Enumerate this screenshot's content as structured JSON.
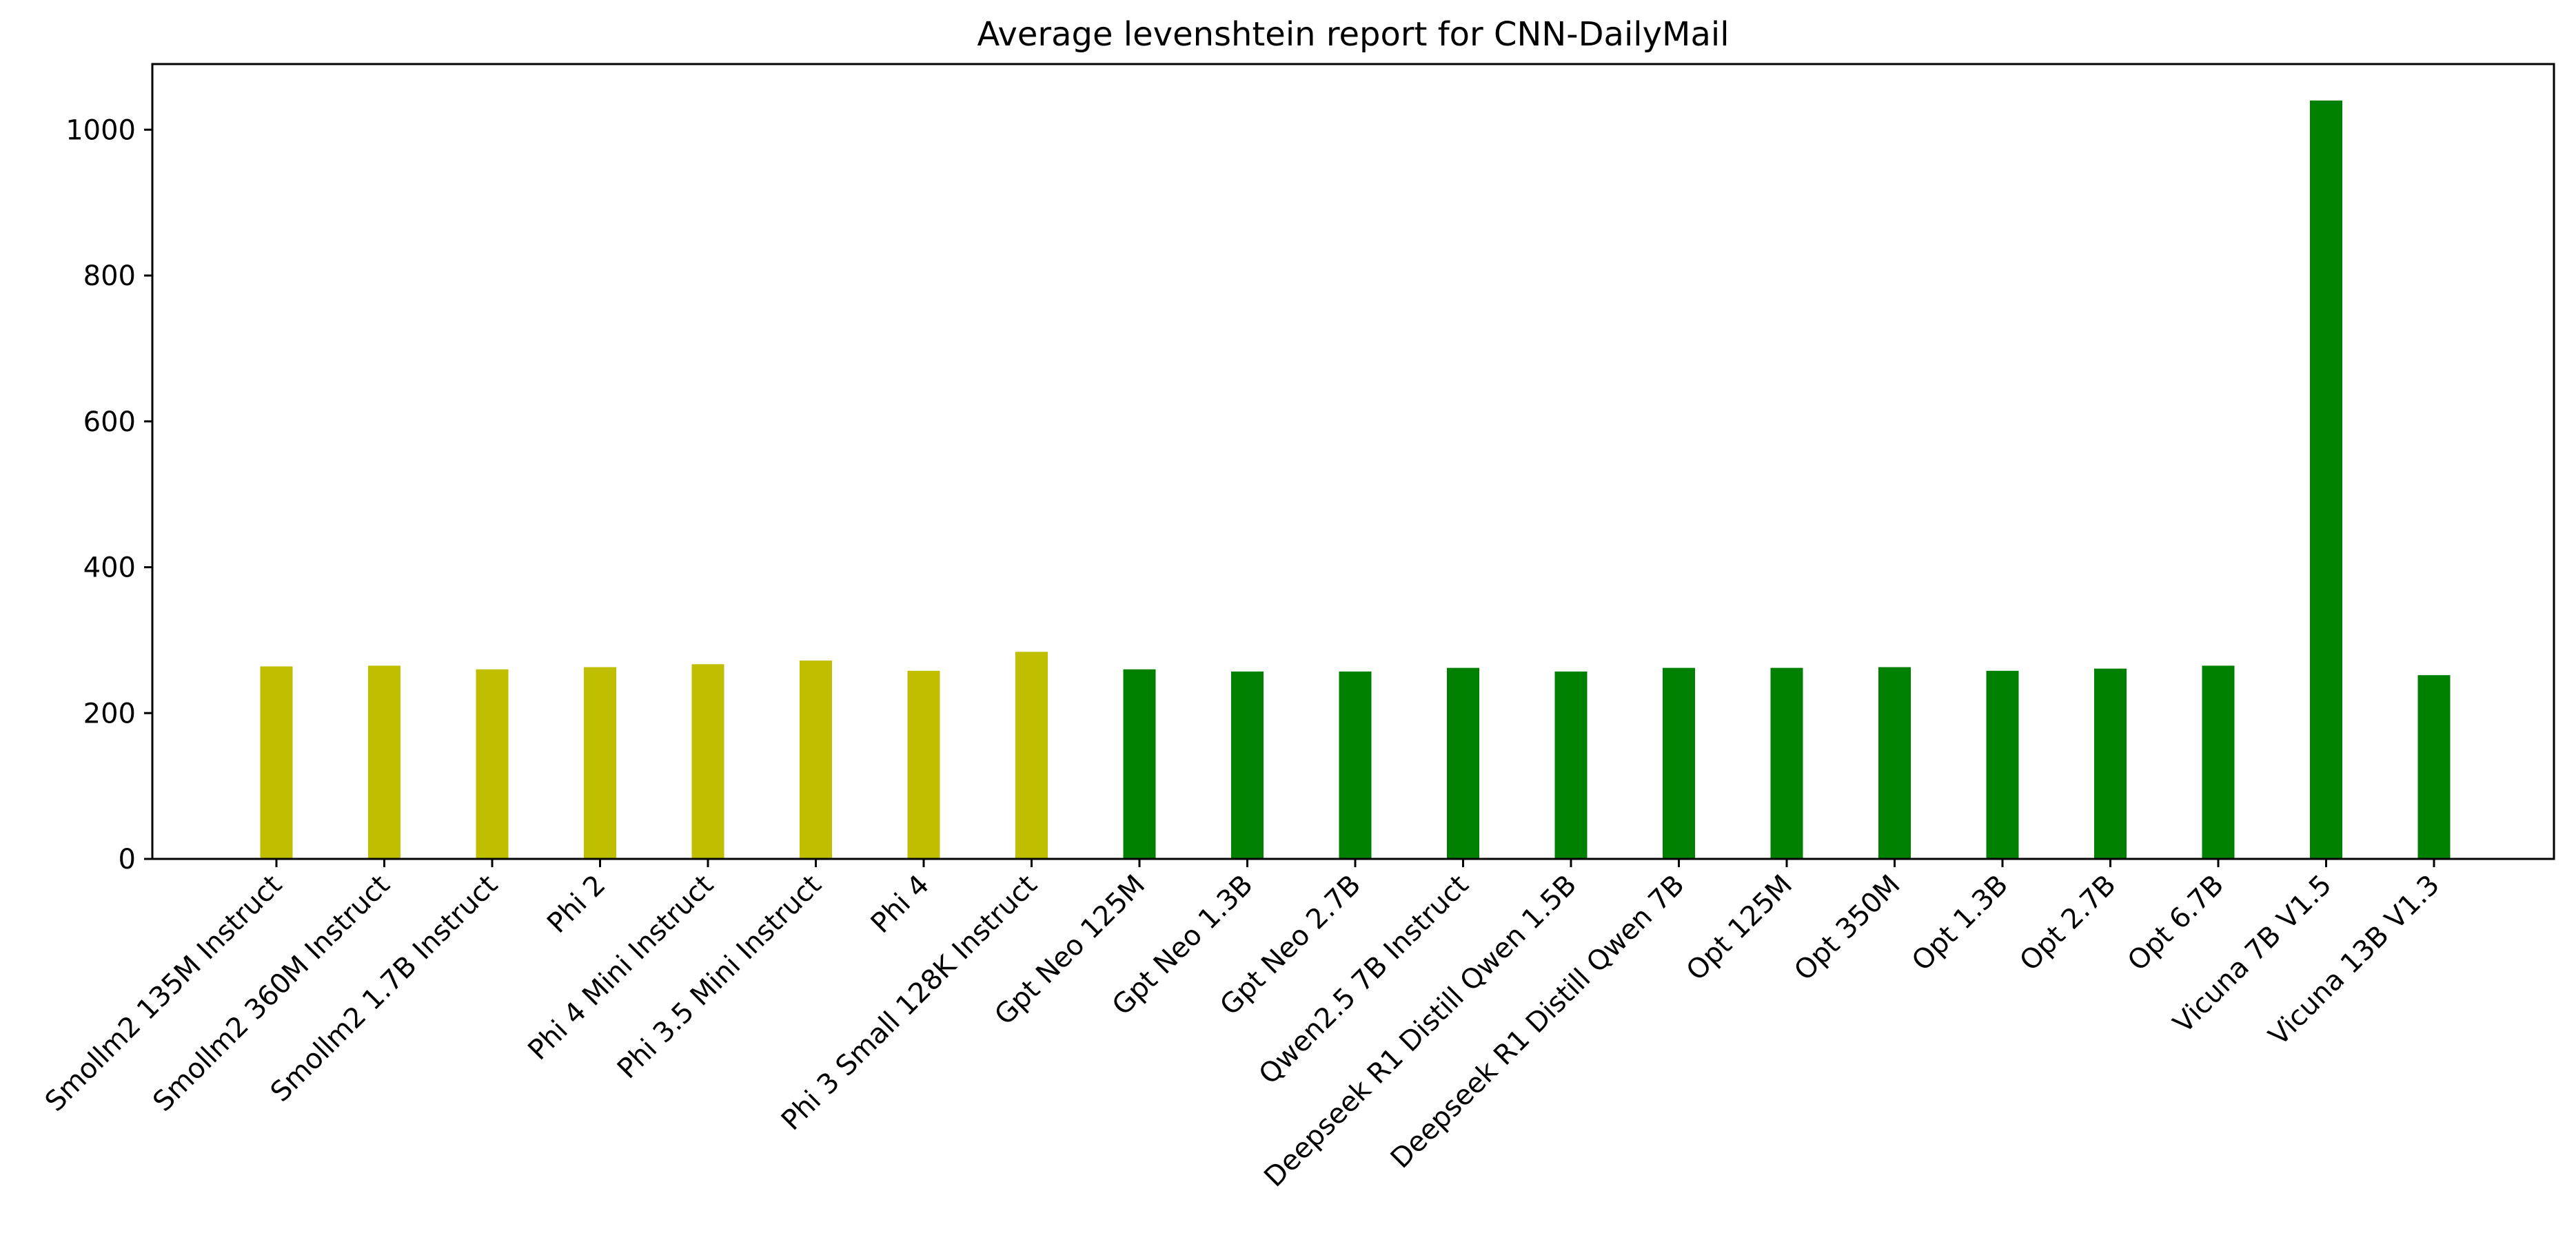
{
  "chart_data": {
    "type": "bar",
    "title": "Average levenshtein report for CNN-DailyMail",
    "xlabel": "",
    "ylabel": "",
    "ylim": [
      0,
      1090
    ],
    "yticks": [
      "0",
      "200",
      "400",
      "600",
      "800",
      "1000"
    ],
    "grid": false,
    "legend": "none",
    "categories": [
      "Smollm2 135M Instruct",
      "Smollm2 360M Instruct",
      "Smollm2 1.7B Instruct",
      "Phi 2",
      "Phi 4 Mini Instruct",
      "Phi 3.5 Mini Instruct",
      "Phi 4",
      "Phi 3 Small 128K Instruct",
      "Gpt Neo 125M",
      "Gpt Neo 1.3B",
      "Gpt Neo 2.7B",
      "Qwen2.5 7B Instruct",
      "Deepseek R1 Distill Qwen 1.5B",
      "Deepseek R1 Distill Qwen 7B",
      "Opt 125M",
      "Opt 350M",
      "Opt 1.3B",
      "Opt 2.7B",
      "Opt 6.7B",
      "Vicuna 7B V1.5",
      "Vicuna 13B V1.3"
    ],
    "values": [
      264,
      265,
      260,
      263,
      267,
      272,
      258,
      284,
      260,
      257,
      257,
      262,
      257,
      262,
      262,
      263,
      258,
      261,
      265,
      1040,
      252
    ],
    "bar_colors": [
      "#bfbf00",
      "#bfbf00",
      "#bfbf00",
      "#bfbf00",
      "#bfbf00",
      "#bfbf00",
      "#bfbf00",
      "#bfbf00",
      "#008000",
      "#008000",
      "#008000",
      "#008000",
      "#008000",
      "#008000",
      "#008000",
      "#008000",
      "#008000",
      "#008000",
      "#008000",
      "#008000",
      "#008000"
    ]
  }
}
